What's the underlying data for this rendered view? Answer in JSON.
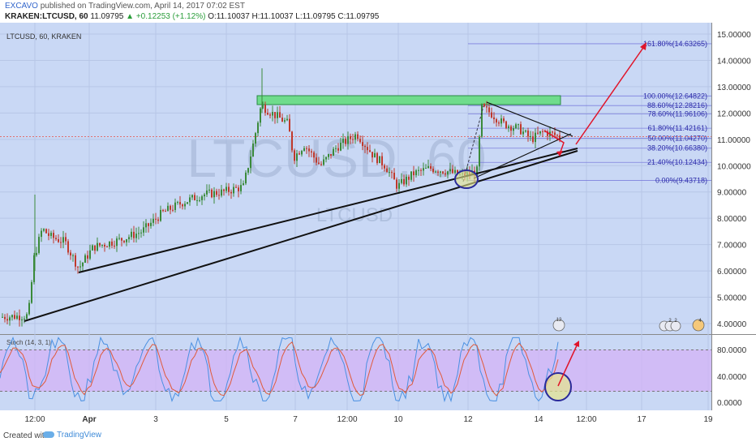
{
  "header": {
    "author": "EXCAVO",
    "published_text": "published on TradingView.com, April 14, 2017 07:02 EST",
    "symbol_line": "KRAKEN:LTCUSD, 60",
    "last": "11.09795",
    "change": "+0.12253 (+1.12%)",
    "open_label": "O:",
    "open": "11.10037",
    "high_label": "H:",
    "high": "11.10037",
    "low_label": "L:",
    "low": "11.09795",
    "close_label": "C:",
    "close": "11.09795"
  },
  "chart": {
    "pane_label": "LTCUSD, 60, KRAKEN",
    "watermark_big": "LTCUSD, 60",
    "watermark_small": "LTCUSD",
    "indicator_label": "Stoch (14, 3, 1)",
    "price_axis": [
      "15.00000",
      "14.00000",
      "13.00000",
      "12.00000",
      "11.00000",
      "10.00000",
      "9.00000",
      "8.00000",
      "7.00000",
      "6.00000",
      "5.00000",
      "4.00000"
    ],
    "stoch_axis": [
      "80.0000",
      "40.0000",
      "0.0000"
    ],
    "time_axis": [
      "12:00",
      "Apr",
      "3",
      "5",
      "7",
      "12:00",
      "10",
      "12",
      "14",
      "12:00",
      "17",
      "19"
    ],
    "fib_levels": [
      {
        "label": "161.80%(14.63265)"
      },
      {
        "label": "100.00%(12.64822)"
      },
      {
        "label": "88.60%(12.28216)"
      },
      {
        "label": "78.60%(11.96106)"
      },
      {
        "label": "61.80%(11.42161)"
      },
      {
        "label": "50.00%(11.04270)"
      },
      {
        "label": "38.20%(10.66380)"
      },
      {
        "label": "21.40%(10.12434)"
      },
      {
        "label": "0.00%(9.43718)"
      }
    ],
    "events": [
      "12",
      "2",
      "2",
      "4"
    ],
    "colors": {
      "bg": "#c9d8f5",
      "up": "#3a8a3a",
      "down": "#c0392b",
      "zone": "#6fdc8c",
      "fib": "#6b6bd8",
      "arrow": "#e0152a",
      "stoch_band": "#d3b3f5",
      "stoch_k": "#4a90e2",
      "stoch_d": "#e05a3a",
      "current_line": "#e07070"
    }
  },
  "footer": {
    "created": "Created with",
    "brand": "TradingView"
  }
}
